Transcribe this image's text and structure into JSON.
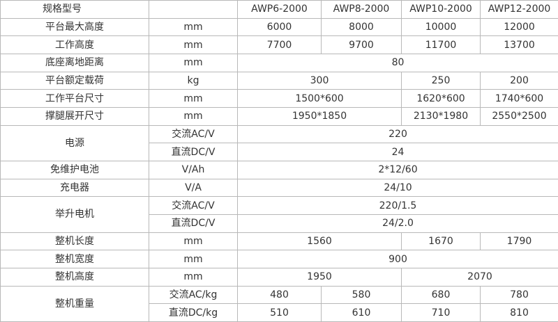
{
  "table": {
    "header": [
      "规格型号",
      "AWP6-2000",
      "AWP8-2000",
      "AWP10-2000",
      "AWP12-2000"
    ],
    "rows": [
      [
        "平台最大高度",
        "mm",
        "6000",
        "8000",
        "10000",
        "12000"
      ],
      [
        "工作高度",
        "mm",
        "7700",
        "9700",
        "11700",
        "13700"
      ],
      [
        "底座离地距离",
        "mm",
        "80"
      ],
      [
        "平台额定载荷",
        "kg",
        "300",
        "250",
        "200"
      ],
      [
        "工作平台尺寸",
        "mm",
        "1500*600",
        "1620*600",
        "1740*600"
      ],
      [
        "撑腿展开尺寸",
        "mm",
        "1950*1850",
        "2130*1980",
        "2550*2500"
      ],
      [
        "电源",
        "交流AC/V",
        "220"
      ],
      [
        "直流DC/V",
        "24"
      ],
      [
        "免维护电池",
        "V/Ah",
        "2*12/60"
      ],
      [
        "充电器",
        "V/A",
        "24/10"
      ],
      [
        "举升电机",
        "交流AC/V",
        "220/1.5"
      ],
      [
        "直流DC/V",
        "24/2.0"
      ],
      [
        "整机长度",
        "mm",
        "1560",
        "1670",
        "1790"
      ],
      [
        "整机宽度",
        "mm",
        "900"
      ],
      [
        "整机高度",
        "mm",
        "1950",
        "2070"
      ],
      [
        "整机重量",
        "交流AC/kg",
        "480",
        "580",
        "680",
        "780"
      ],
      [
        "直流DC/kg",
        "510",
        "610",
        "710",
        "810"
      ]
    ]
  }
}
